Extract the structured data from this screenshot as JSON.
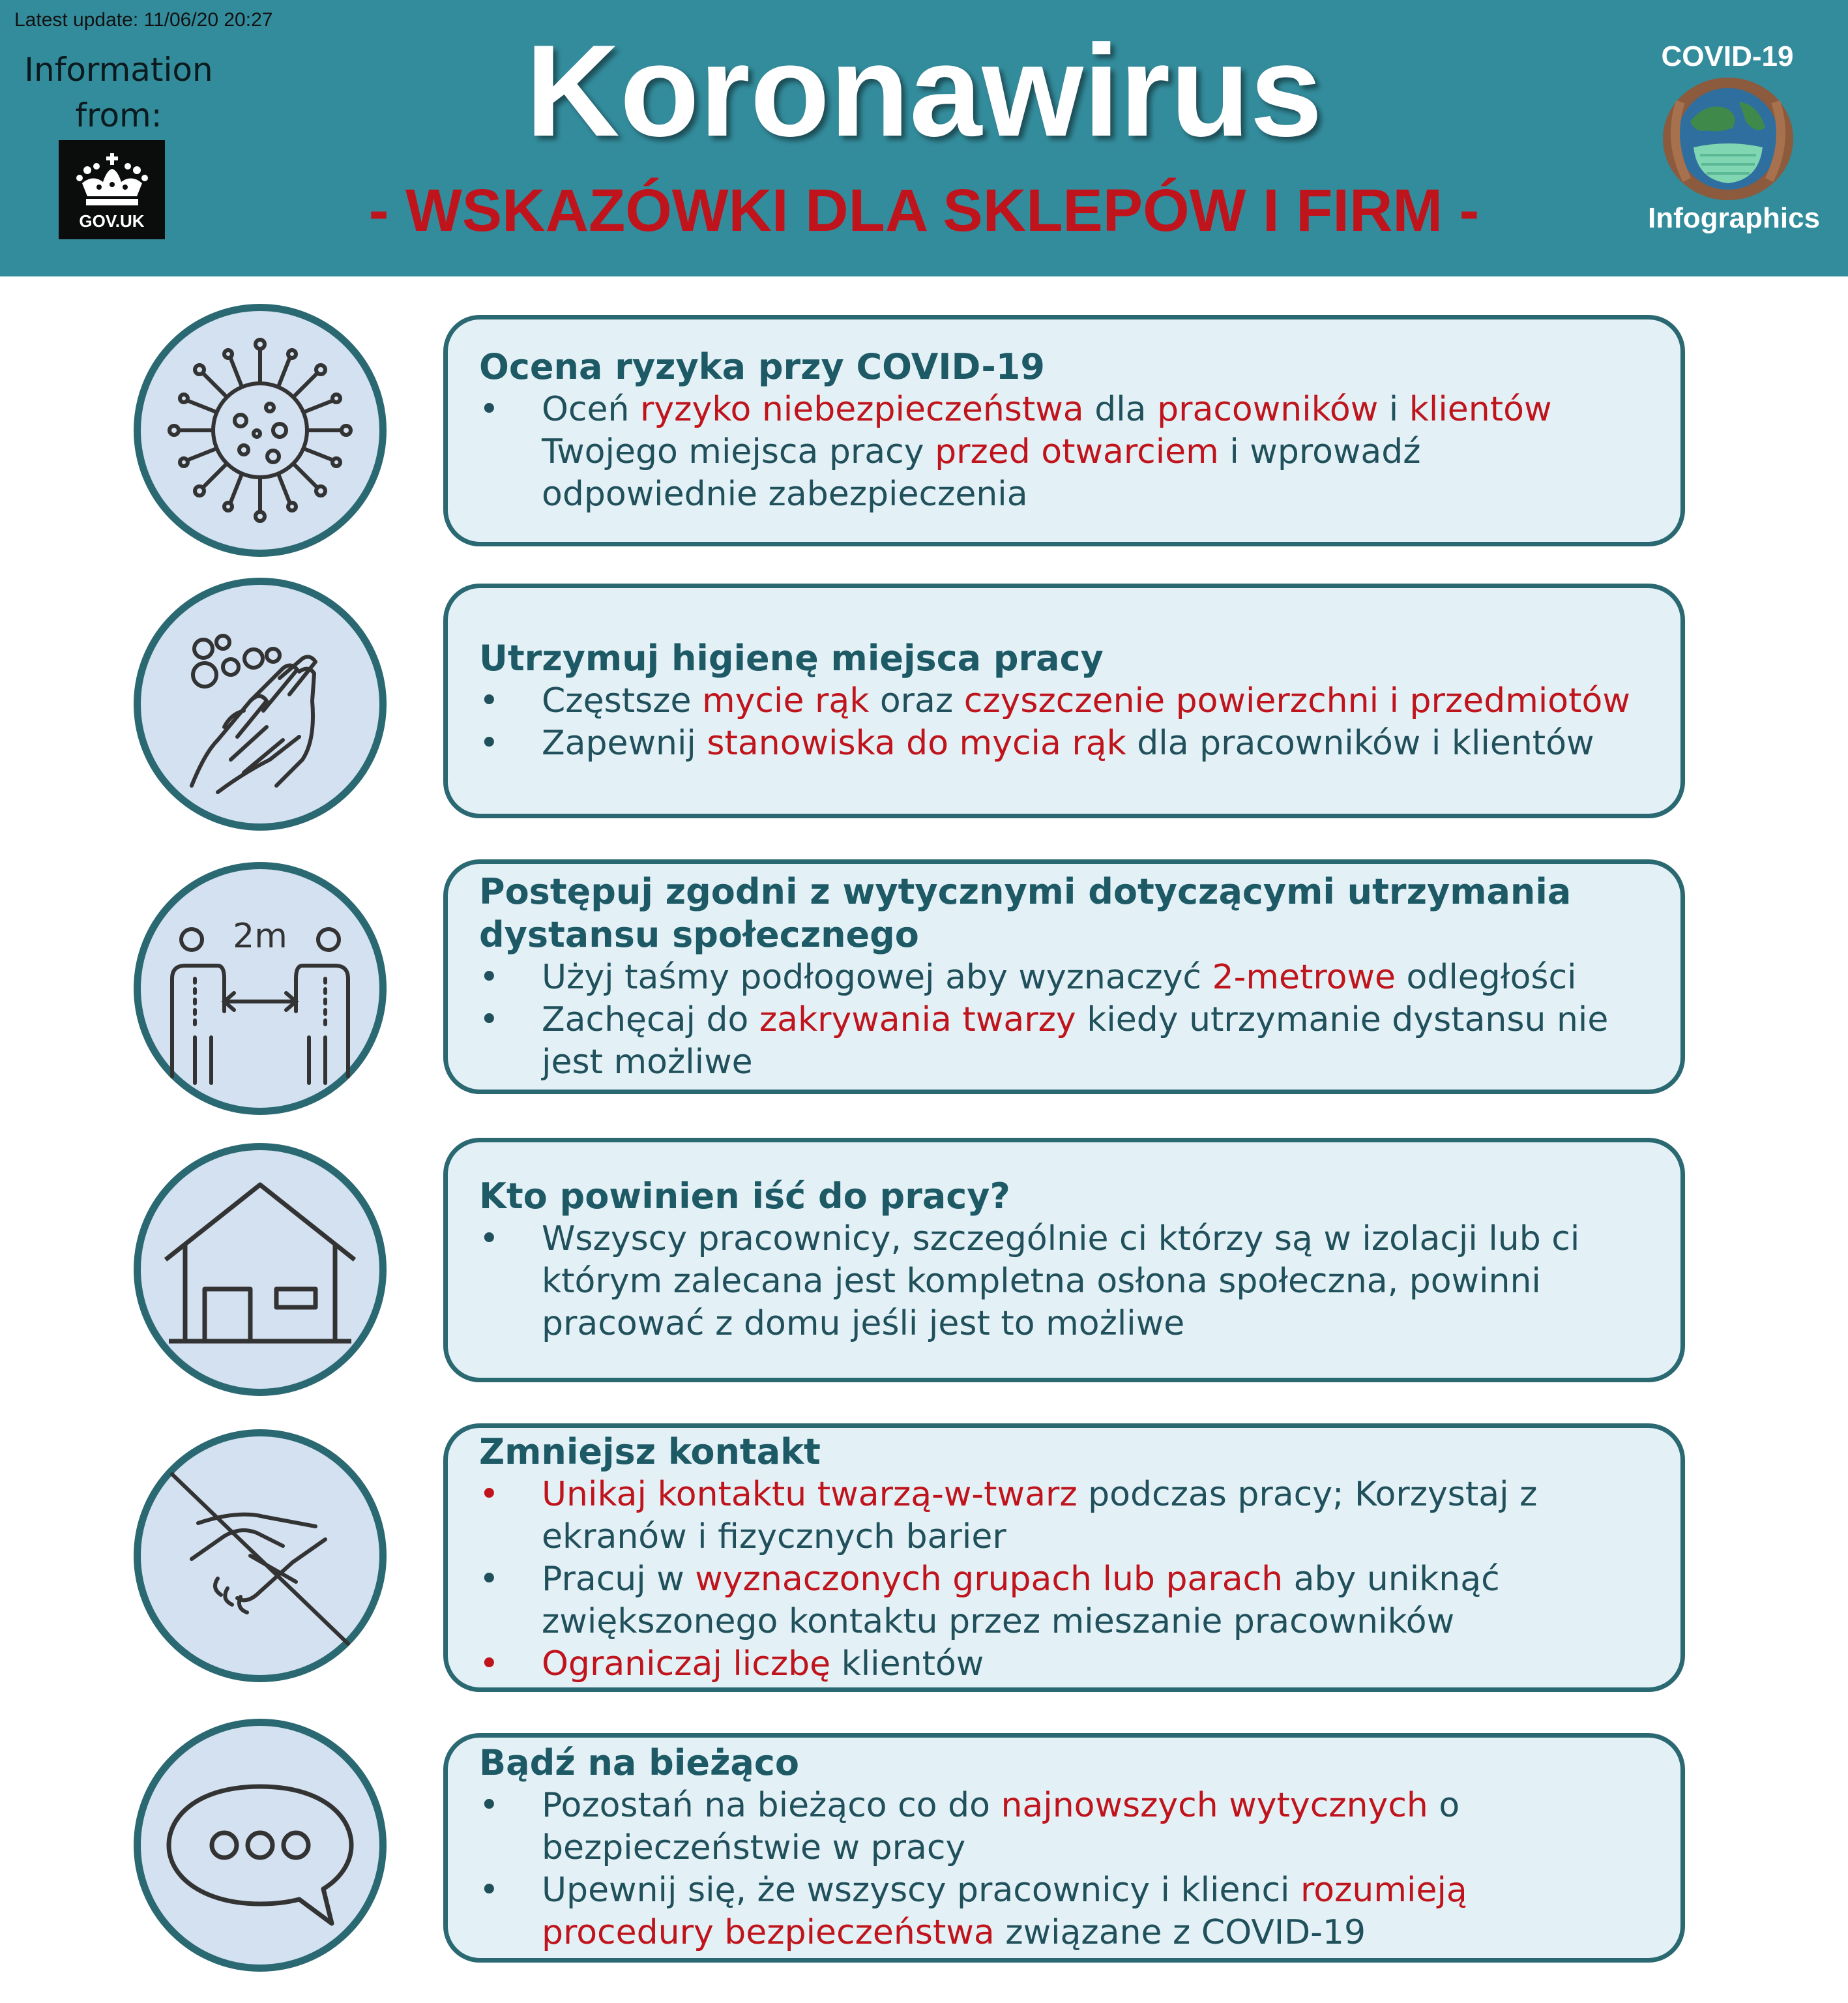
{
  "header": {
    "update": "Latest update: 11/06/20 20:27",
    "info_line1": "Information",
    "info_line2": "from:",
    "gov_label": "GOV.UK",
    "title": "Koronawirus",
    "subtitle": "- WSKAZÓWKI DLA SKLEPÓW I FIRM -",
    "badge_top": "COVID-19",
    "badge_bottom": "Infographics"
  },
  "colors": {
    "header_bg": "#338c9c",
    "accent_red": "#c0141c",
    "card_border": "#2a6872",
    "card_bg": "#e3f1f6",
    "circle_bg": "#d3e1f1",
    "heading_text": "#1d5a66",
    "body_text": "#20505b"
  },
  "sections": [
    {
      "icon": "virus-icon",
      "title": "Ocena ryzyka przy COVID-19",
      "bullets": [
        {
          "parts": [
            {
              "t": "Oceń ",
              "red": false
            },
            {
              "t": "ryzyko niebezpieczeństwa",
              "red": true
            },
            {
              "t": " dla ",
              "red": false
            },
            {
              "t": "pracowników",
              "red": true
            },
            {
              "t": " i ",
              "red": false
            },
            {
              "t": "klientów",
              "red": true
            },
            {
              "t": " Twojego miejsca pracy ",
              "red": false
            },
            {
              "t": "przed otwarciem",
              "red": true
            },
            {
              "t": " i wprowadź odpowiednie zabezpieczenia",
              "red": false
            }
          ]
        }
      ]
    },
    {
      "icon": "hand-washing-icon",
      "title": "Utrzymuj higienę miejsca pracy",
      "bullets": [
        {
          "parts": [
            {
              "t": "Częstsze ",
              "red": false
            },
            {
              "t": "mycie rąk",
              "red": true
            },
            {
              "t": " oraz ",
              "red": false
            },
            {
              "t": "czyszczenie powierzchni i przedmiotów",
              "red": true
            }
          ]
        },
        {
          "parts": [
            {
              "t": "Zapewnij ",
              "red": false
            },
            {
              "t": "stanowiska do mycia rąk",
              "red": true
            },
            {
              "t": " dla pracowników i klientów",
              "red": false
            }
          ]
        }
      ]
    },
    {
      "icon": "social-distance-icon",
      "icon_text": "2m",
      "title": "Postępuj zgodni z wytycznymi dotyczącymi utrzymania dystansu społecznego",
      "bullets": [
        {
          "parts": [
            {
              "t": "Użyj taśmy podłogowej aby wyznaczyć ",
              "red": false
            },
            {
              "t": "2-metrowe",
              "red": true
            },
            {
              "t": " odległości",
              "red": false
            }
          ]
        },
        {
          "parts": [
            {
              "t": "Zachęcaj do ",
              "red": false
            },
            {
              "t": "zakrywania twarzy",
              "red": true
            },
            {
              "t": " kiedy utrzymanie dystansu nie jest możliwe",
              "red": false
            }
          ]
        }
      ]
    },
    {
      "icon": "house-icon",
      "title": "Kto powinien iść do pracy?",
      "bullets": [
        {
          "parts": [
            {
              "t": "Wszyscy pracownicy, szczególnie ci którzy są w izolacji lub ci którym zalecana jest kompletna osłona społeczna, powinni pracować z domu jeśli jest to możliwe",
              "red": false
            }
          ]
        }
      ]
    },
    {
      "icon": "no-handshake-icon",
      "title": "Zmniejsz kontakt",
      "bullets": [
        {
          "bullet_red": true,
          "parts": [
            {
              "t": "Unikaj kontaktu twarzą-w-twarz",
              "red": true
            },
            {
              "t": " podczas pracy; Korzystaj z ekranów i fizycznych barier",
              "red": false
            }
          ]
        },
        {
          "parts": [
            {
              "t": "Pracuj w ",
              "red": false
            },
            {
              "t": "wyznaczonych grupach lub parach",
              "red": true
            },
            {
              "t": " aby uniknąć zwiększonego kontaktu przez mieszanie pracowników",
              "red": false
            }
          ]
        },
        {
          "bullet_red": true,
          "parts": [
            {
              "t": "Ograniczaj liczbę",
              "red": true
            },
            {
              "t": " klientów",
              "red": false
            }
          ]
        }
      ]
    },
    {
      "icon": "speech-bubble-icon",
      "title": "Bądź na bieżąco",
      "bullets": [
        {
          "parts": [
            {
              "t": "Pozostań na bieżąco co do ",
              "red": false
            },
            {
              "t": "najnowszych wytycznych",
              "red": true
            },
            {
              "t": " o bezpieczeństwie w pracy",
              "red": false
            }
          ]
        },
        {
          "parts": [
            {
              "t": "Upewnij się, że wszyscy pracownicy i klienci ",
              "red": false
            },
            {
              "t": "rozumieją procedury bezpieczeństwa",
              "red": true
            },
            {
              "t": " związane z COVID-19",
              "red": false
            }
          ]
        }
      ]
    }
  ]
}
